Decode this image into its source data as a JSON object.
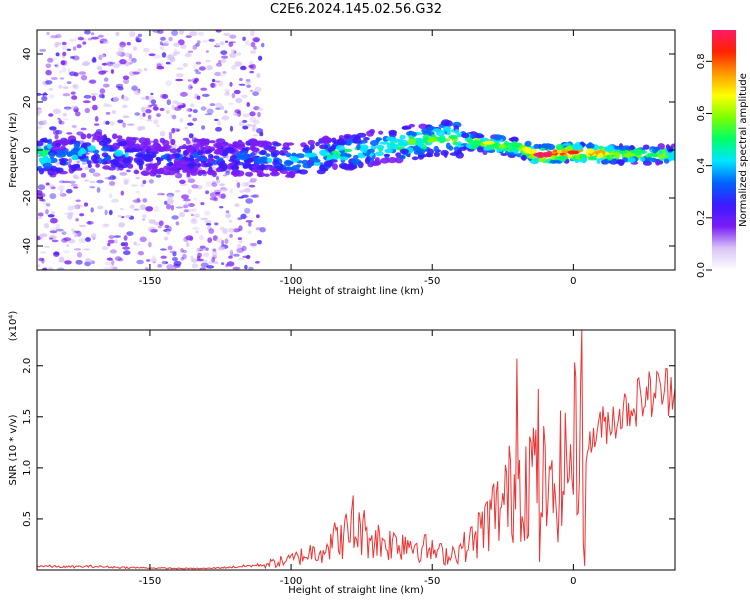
{
  "title": "C2E6.2024.145.02.56.G32",
  "chart_data": [
    {
      "type": "heatmap",
      "xlabel": "Height of straight line (km)",
      "ylabel": "Frequency (Hz)",
      "xlim": [
        -190,
        36
      ],
      "ylim": [
        -50,
        50
      ],
      "xticks": [
        -150,
        -100,
        -50,
        0
      ],
      "yticks": [
        -40,
        -20,
        0,
        20,
        40
      ],
      "colorbar": {
        "label": "Normalized spectral amplitude",
        "range": [
          0.0,
          0.92
        ],
        "ticks": [
          "0.0",
          "0.2",
          "0.4",
          "0.6",
          "0.8"
        ],
        "colormap": [
          "#ffffff",
          "#d9c4f7",
          "#7a1cf5",
          "#3a1bff",
          "#0064ff",
          "#00e6ff",
          "#00ff66",
          "#7dff00",
          "#ffff00",
          "#ff9900",
          "#ff2200",
          "#ff1a66"
        ]
      },
      "ridge": [
        {
          "x": -185,
          "f": -4,
          "a": 0.35
        },
        {
          "x": -170,
          "f": 0,
          "a": 0.4
        },
        {
          "x": -150,
          "f": -3,
          "a": 0.25
        },
        {
          "x": -120,
          "f": -3,
          "a": 0.3
        },
        {
          "x": -100,
          "f": -4,
          "a": 0.4
        },
        {
          "x": -80,
          "f": -1,
          "a": 0.45
        },
        {
          "x": -60,
          "f": 3,
          "a": 0.5
        },
        {
          "x": -45,
          "f": 5,
          "a": 0.55
        },
        {
          "x": -35,
          "f": 3,
          "a": 0.6
        },
        {
          "x": -20,
          "f": 1,
          "a": 0.6
        },
        {
          "x": -12,
          "f": -2,
          "a": 0.9
        },
        {
          "x": 0,
          "f": -1,
          "a": 0.85
        },
        {
          "x": 20,
          "f": -2,
          "a": 0.6
        },
        {
          "x": 35,
          "f": -2,
          "a": 0.55
        }
      ]
    },
    {
      "type": "line",
      "xlabel": "Height of straight line (km)",
      "ylabel": "SNR (10 * v/v)",
      "y_multiplier": "(x10⁴)",
      "xlim": [
        -190,
        36
      ],
      "ylim": [
        0,
        23500
      ],
      "xticks": [
        -150,
        -100,
        -50,
        0
      ],
      "yticks": [
        5000,
        10000,
        15000,
        20000
      ],
      "ytick_labels": [
        "0.5",
        "1.0",
        "1.5",
        "2.0"
      ],
      "color": "#ee3333",
      "series": [
        {
          "x": [
            -190,
            -180,
            -170,
            -160,
            -150,
            -140,
            -130,
            -120,
            -110,
            -100,
            -95,
            -90,
            -85,
            -80,
            -75,
            -70,
            -65,
            -60,
            -55,
            -50,
            -45,
            -40,
            -35,
            -30,
            -25,
            -20,
            -15,
            -12,
            -10,
            -8,
            -5,
            -2,
            0,
            3,
            4,
            5,
            8,
            10,
            15,
            20,
            25,
            30,
            36
          ],
          "y": [
            400,
            300,
            350,
            250,
            200,
            150,
            150,
            300,
            500,
            1000,
            1500,
            2000,
            2800,
            3500,
            3800,
            3000,
            2600,
            2800,
            2500,
            1800,
            1500,
            2000,
            3000,
            5000,
            6500,
            8500,
            9500,
            11000,
            8000,
            6500,
            9000,
            10500,
            12000,
            13500,
            1000,
            12000,
            13500,
            14000,
            15000,
            16000,
            17000,
            17500,
            17800
          ]
        }
      ],
      "spikes": [
        {
          "x": -78,
          "y": 7300
        },
        {
          "x": -20,
          "y": 20700
        },
        {
          "x": 3,
          "y": 23500
        },
        {
          "x": 4,
          "y": 400
        },
        {
          "x": -12,
          "y": 800
        }
      ]
    }
  ]
}
